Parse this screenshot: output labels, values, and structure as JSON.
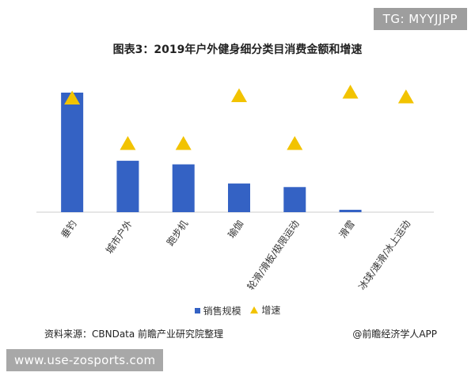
{
  "tag": "TG: MYYJJPP",
  "url": "www.use-zosports.com",
  "source": "资料来源：CBNData 前瞻产业研究院整理",
  "credit": "@前瞻经济学人APP",
  "colors": {
    "bar": "#3462c4",
    "marker": "#f2c300",
    "axis": "#cccccc"
  },
  "chart_data": {
    "type": "bar",
    "title": "图表3：2019年户外健身细分类目消费金额和增速",
    "categories": [
      "垂钓",
      "城市户外",
      "跑步机",
      "瑜伽",
      "轮滑/滑板/极限运动",
      "滑雪",
      "冰球/速滑/冰上运动"
    ],
    "series": [
      {
        "name": "销售规模",
        "kind": "bar",
        "values": [
          100,
          43,
          40,
          24,
          21,
          2,
          0
        ]
      },
      {
        "name": "增速",
        "kind": "marker",
        "values": [
          95,
          57,
          57,
          97,
          57,
          100,
          96
        ]
      }
    ],
    "xlabel": "",
    "ylabel": "",
    "ylim": [
      0,
      100
    ],
    "grid": false,
    "legend": "bottom"
  }
}
